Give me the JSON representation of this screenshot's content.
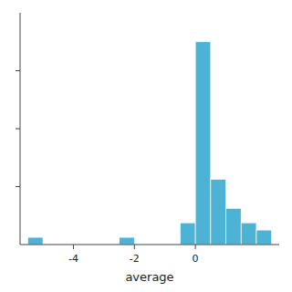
{
  "chart_data": {
    "type": "histogram",
    "xlabel": "average",
    "bins": [
      -5.5,
      -5.0,
      -4.5,
      -4.0,
      -3.5,
      -3.0,
      -2.5,
      -2.0,
      -1.5,
      -1.0,
      -0.5,
      0.0,
      0.5,
      1.0,
      1.5,
      2.0,
      2.5
    ],
    "values": [
      1,
      0,
      0,
      0,
      0,
      0,
      1,
      0,
      0,
      0,
      3,
      28,
      9,
      5,
      3,
      2
    ],
    "color": "#4db3d4",
    "xlim": [
      -5.75,
      2.75
    ],
    "ylim": [
      0,
      32
    ],
    "xticks": [
      -4,
      -2,
      0
    ],
    "yticks": [
      8,
      16,
      24
    ],
    "tick_labels": "x"
  }
}
